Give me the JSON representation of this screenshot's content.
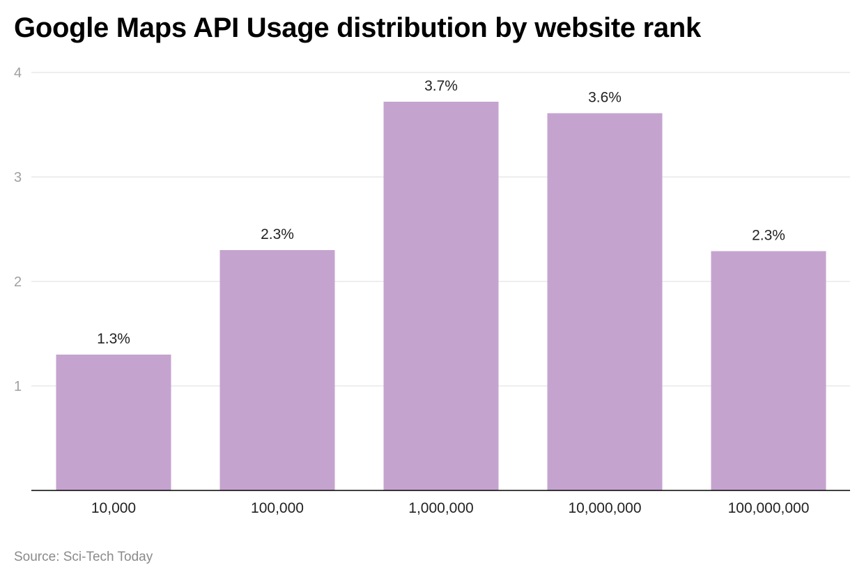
{
  "chart_data": {
    "type": "bar",
    "title": "Google Maps API Usage distribution by website rank",
    "categories": [
      "10,000",
      "100,000",
      "1,000,000",
      "10,000,000",
      "100,000,000"
    ],
    "values": [
      1.3,
      2.3,
      3.72,
      3.61,
      2.29
    ],
    "data_labels": [
      "1.3%",
      "2.3%",
      "3.7%",
      "3.6%",
      "2.3%"
    ],
    "yticks": [
      "1",
      "2",
      "3",
      "4"
    ],
    "ylim": [
      0,
      4
    ],
    "xlabel": "",
    "ylabel": "",
    "grid": true,
    "bar_color": "#c5a3cf",
    "source": "Source: Sci-Tech Today"
  }
}
